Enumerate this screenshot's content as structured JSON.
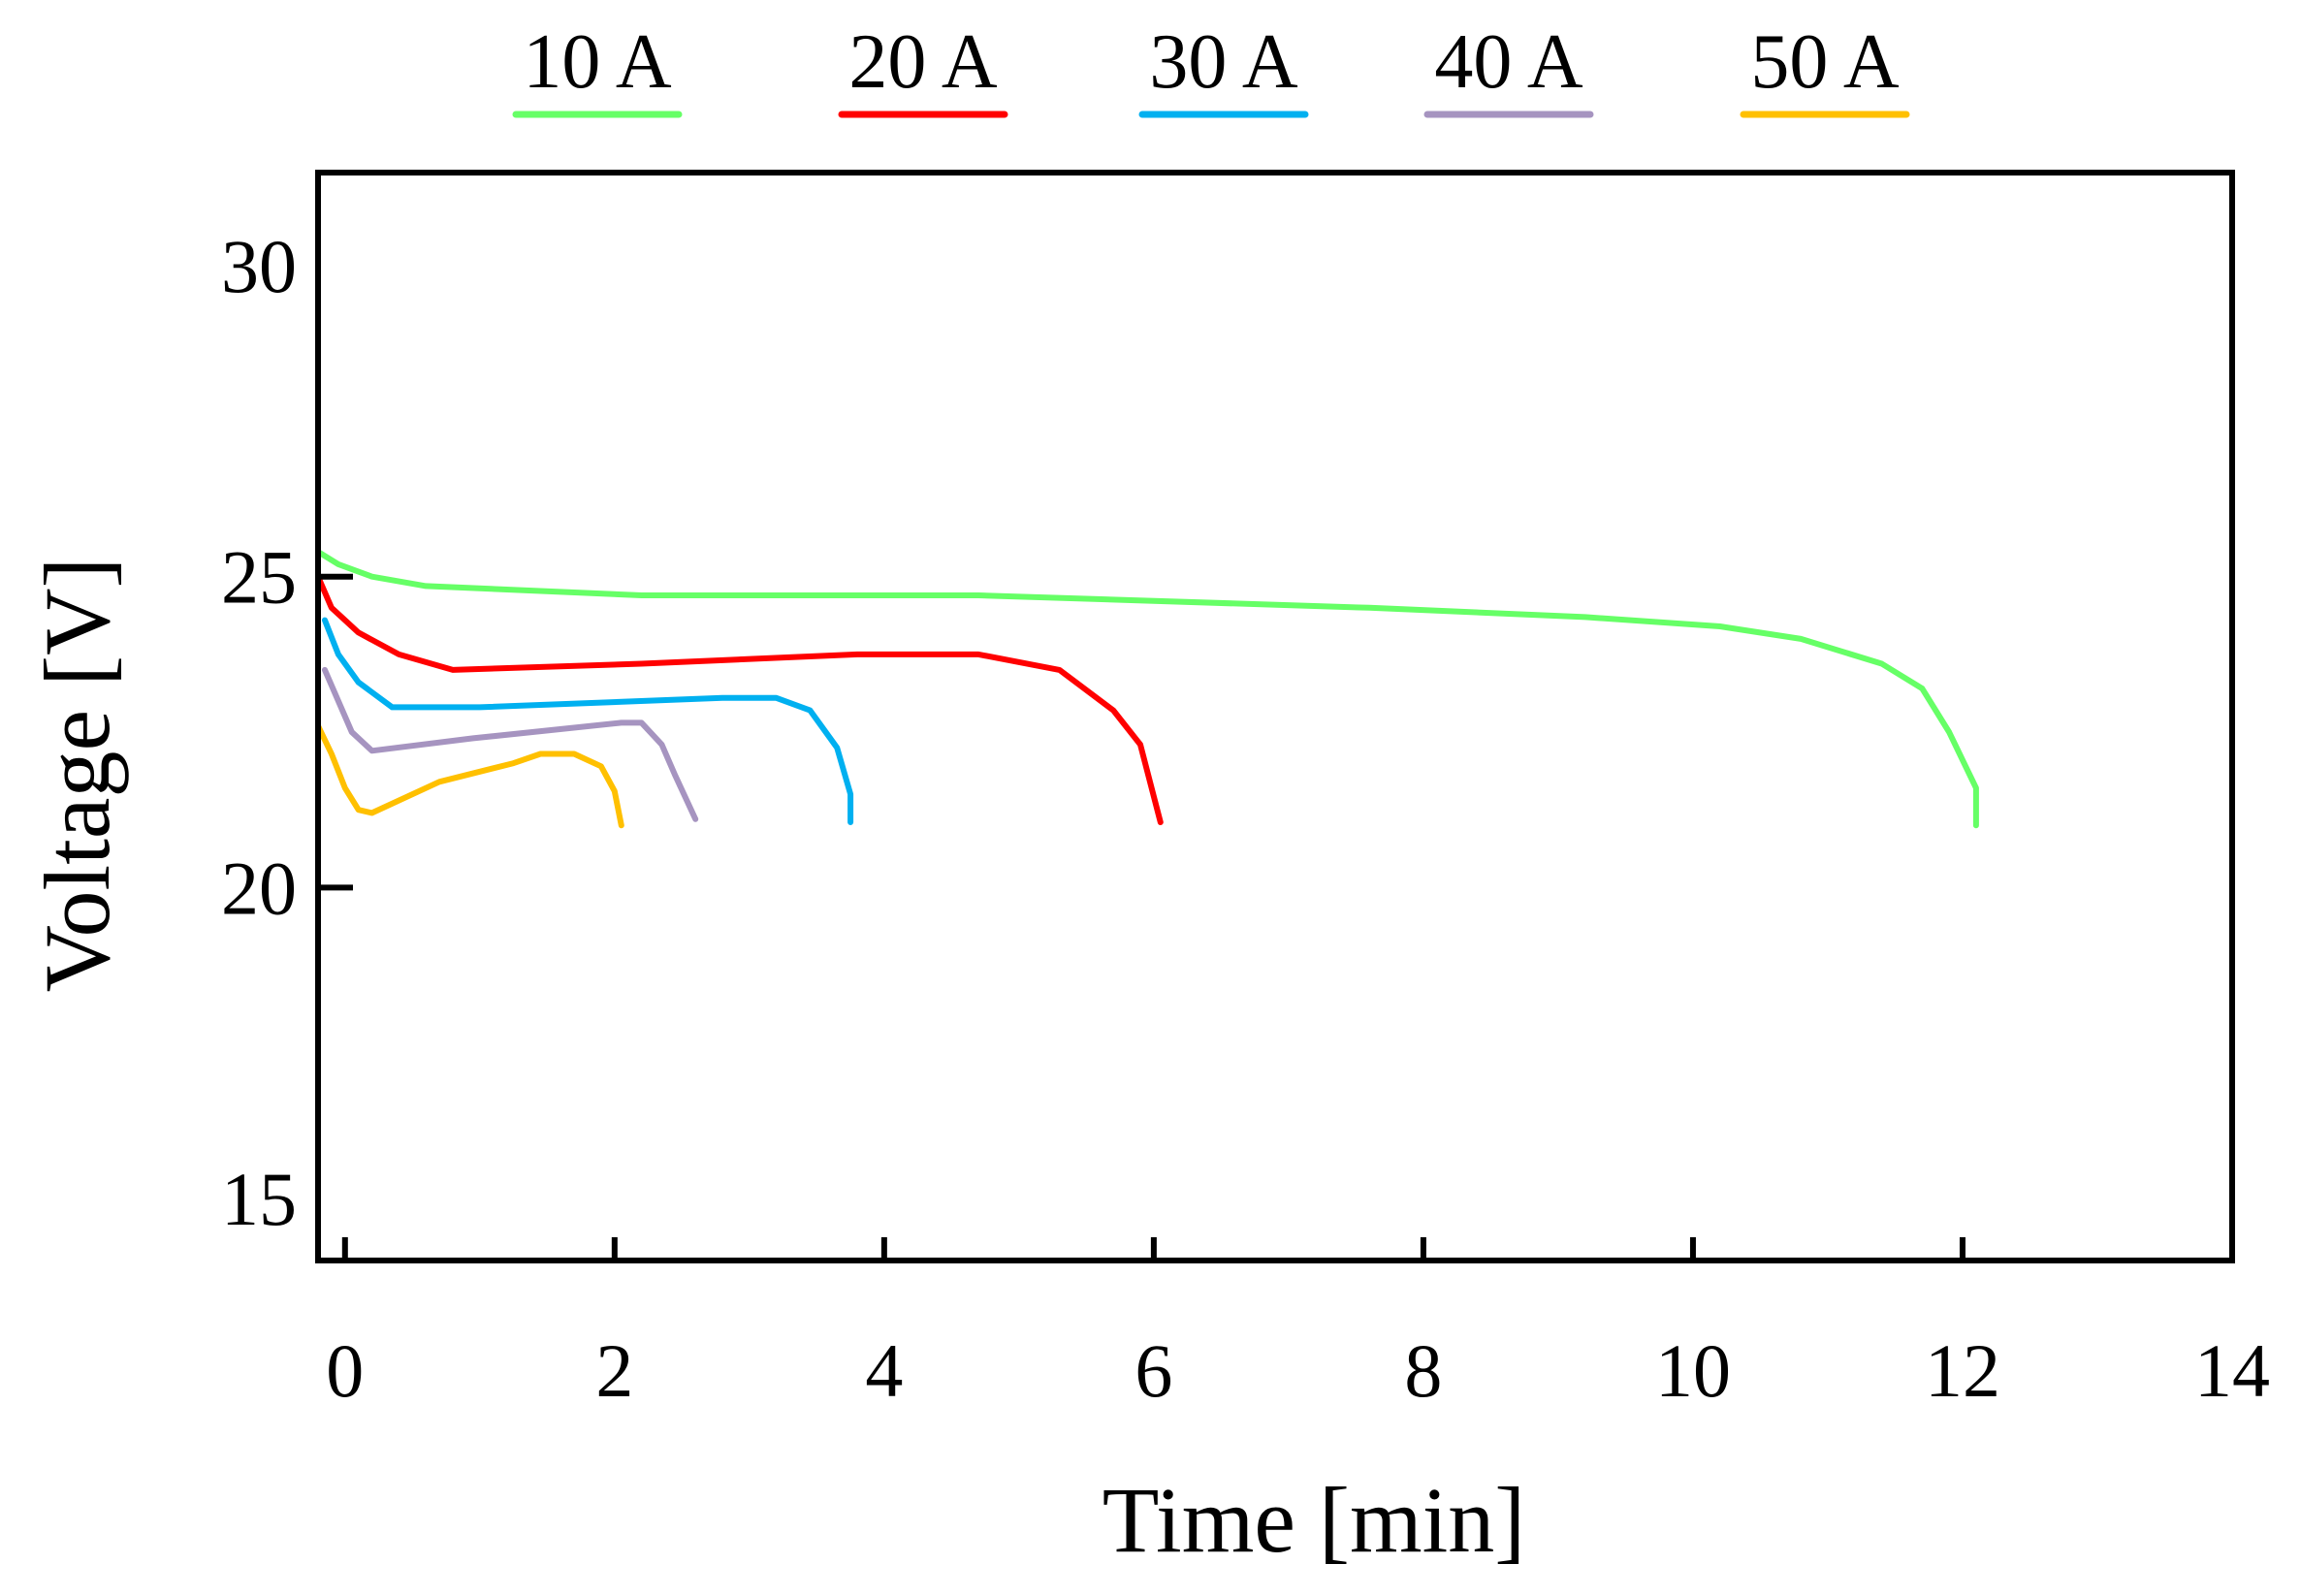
{
  "chart_data": {
    "type": "line",
    "title": "",
    "xlabel": "Time [min]",
    "ylabel": "Voltage [V]",
    "xlim": [
      -0.2,
      14
    ],
    "ylim": [
      14,
      31.5
    ],
    "xticks": [
      0,
      2,
      4,
      6,
      8,
      10,
      12,
      14
    ],
    "yticks": [
      15,
      20,
      25,
      30
    ],
    "xtick_labels": [
      "0",
      "2",
      "4",
      "6",
      "8",
      "10",
      "12",
      "14"
    ],
    "ytick_labels": [
      "15",
      "20",
      "25",
      "30"
    ],
    "grid": false,
    "legend_position": "top",
    "series": [
      {
        "name": "10 A",
        "color": "#66ff66",
        "x": [
          -0.2,
          -0.05,
          0.2,
          0.6,
          2.2,
          4.7,
          7.6,
          9.2,
          10.2,
          10.8,
          11.4,
          11.7,
          11.9,
          12.1,
          12.1
        ],
        "y": [
          25.4,
          25.2,
          25.0,
          24.85,
          24.7,
          24.7,
          24.5,
          24.35,
          24.2,
          24.0,
          23.6,
          23.2,
          22.5,
          21.6,
          21.0
        ]
      },
      {
        "name": "20 A",
        "color": "#ff0000",
        "x": [
          -0.2,
          -0.1,
          0.1,
          0.4,
          0.8,
          2.2,
          3.8,
          4.7,
          5.3,
          5.7,
          5.9,
          6.05
        ],
        "y": [
          25.0,
          24.5,
          24.1,
          23.75,
          23.5,
          23.6,
          23.75,
          23.75,
          23.5,
          22.85,
          22.3,
          21.05
        ]
      },
      {
        "name": "30 A",
        "color": "#00b0f0",
        "x": [
          -0.15,
          -0.05,
          0.1,
          0.35,
          1.0,
          2.8,
          3.2,
          3.45,
          3.65,
          3.75,
          3.75
        ],
        "y": [
          24.3,
          23.75,
          23.3,
          22.9,
          22.9,
          23.05,
          23.05,
          22.85,
          22.25,
          21.5,
          21.05
        ]
      },
      {
        "name": "40 A",
        "color": "#a694c0",
        "x": [
          -0.15,
          0.05,
          0.2,
          0.95,
          2.05,
          2.2,
          2.35,
          2.45,
          2.6
        ],
        "y": [
          23.5,
          22.5,
          22.2,
          22.4,
          22.65,
          22.65,
          22.3,
          21.8,
          21.1
        ]
      },
      {
        "name": "50 A",
        "color": "#ffc000",
        "x": [
          -0.2,
          -0.1,
          0.0,
          0.1,
          0.2,
          0.7,
          1.25,
          1.45,
          1.7,
          1.9,
          2.0,
          2.05
        ],
        "y": [
          22.6,
          22.15,
          21.6,
          21.25,
          21.2,
          21.7,
          22.0,
          22.15,
          22.15,
          21.95,
          21.55,
          21.0
        ]
      }
    ]
  }
}
